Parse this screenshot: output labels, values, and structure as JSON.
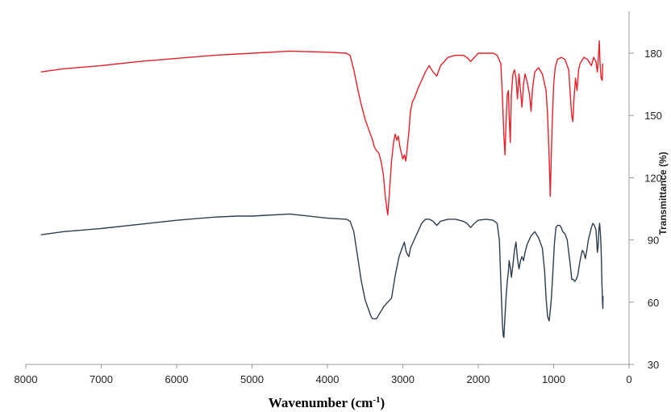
{
  "chart_data": {
    "type": "line",
    "xlabel": "Wavenumber (cm",
    "xlabel_sup": "-1",
    "xlabel_end": ")",
    "ylabel": "Transmittance (%)",
    "xlim": [
      8000,
      0
    ],
    "ylim": [
      30,
      195
    ],
    "x_ticks": [
      8000,
      7000,
      6000,
      5000,
      4000,
      3000,
      2000,
      1000,
      0
    ],
    "x_tick_labels": [
      "8000",
      "7000",
      "6000",
      "5000",
      "4000",
      "3000",
      "2000",
      "1000",
      "0"
    ],
    "y_ticks": [
      30,
      60,
      90,
      120,
      150,
      180
    ],
    "y_tick_labels": [
      "30",
      "60",
      "90",
      "120",
      "150",
      "180"
    ],
    "y_axis_position": "right",
    "grid": false,
    "legend": "none",
    "series": [
      {
        "color": "#e8202a",
        "points": [
          [
            7800,
            171
          ],
          [
            7500,
            172.5
          ],
          [
            7000,
            174
          ],
          [
            6500,
            176
          ],
          [
            6000,
            177.5
          ],
          [
            5500,
            179
          ],
          [
            5000,
            180
          ],
          [
            4500,
            181
          ],
          [
            4000,
            180.5
          ],
          [
            3750,
            180
          ],
          [
            3700,
            179
          ],
          [
            3650,
            172
          ],
          [
            3600,
            163
          ],
          [
            3550,
            155
          ],
          [
            3500,
            148
          ],
          [
            3450,
            143
          ],
          [
            3400,
            138
          ],
          [
            3380,
            135
          ],
          [
            3350,
            133
          ],
          [
            3320,
            132
          ],
          [
            3290,
            128
          ],
          [
            3260,
            122
          ],
          [
            3230,
            110
          ],
          [
            3200,
            102
          ],
          [
            3180,
            112
          ],
          [
            3150,
            128
          ],
          [
            3120,
            138
          ],
          [
            3100,
            141
          ],
          [
            3080,
            138
          ],
          [
            3060,
            140
          ],
          [
            3040,
            135
          ],
          [
            3020,
            132
          ],
          [
            3000,
            129
          ],
          [
            2980,
            131
          ],
          [
            2960,
            128
          ],
          [
            2940,
            135
          ],
          [
            2920,
            142
          ],
          [
            2900,
            152
          ],
          [
            2870,
            157
          ],
          [
            2850,
            158
          ],
          [
            2800,
            163
          ],
          [
            2750,
            167
          ],
          [
            2700,
            171
          ],
          [
            2650,
            174
          ],
          [
            2600,
            171
          ],
          [
            2550,
            169
          ],
          [
            2500,
            174
          ],
          [
            2400,
            178
          ],
          [
            2300,
            179
          ],
          [
            2200,
            179
          ],
          [
            2150,
            178
          ],
          [
            2100,
            176
          ],
          [
            2050,
            178
          ],
          [
            2000,
            180
          ],
          [
            1900,
            180
          ],
          [
            1800,
            180
          ],
          [
            1750,
            179
          ],
          [
            1700,
            175
          ],
          [
            1680,
            160
          ],
          [
            1660,
            140
          ],
          [
            1645,
            131
          ],
          [
            1630,
            148
          ],
          [
            1615,
            160
          ],
          [
            1600,
            162
          ],
          [
            1590,
            150
          ],
          [
            1575,
            137
          ],
          [
            1560,
            160
          ],
          [
            1540,
            170
          ],
          [
            1520,
            172
          ],
          [
            1500,
            168
          ],
          [
            1480,
            158
          ],
          [
            1460,
            170
          ],
          [
            1440,
            162
          ],
          [
            1420,
            154
          ],
          [
            1400,
            165
          ],
          [
            1380,
            170
          ],
          [
            1350,
            166
          ],
          [
            1320,
            160
          ],
          [
            1300,
            152
          ],
          [
            1280,
            163
          ],
          [
            1250,
            171
          ],
          [
            1200,
            173
          ],
          [
            1150,
            170
          ],
          [
            1100,
            162
          ],
          [
            1080,
            150
          ],
          [
            1060,
            130
          ],
          [
            1050,
            118
          ],
          [
            1045,
            111
          ],
          [
            1035,
            125
          ],
          [
            1020,
            145
          ],
          [
            1000,
            165
          ],
          [
            980,
            173
          ],
          [
            950,
            177
          ],
          [
            900,
            178
          ],
          [
            850,
            177
          ],
          [
            800,
            172
          ],
          [
            780,
            160
          ],
          [
            760,
            150
          ],
          [
            745,
            147
          ],
          [
            730,
            158
          ],
          [
            710,
            168
          ],
          [
            690,
            162
          ],
          [
            670,
            172
          ],
          [
            650,
            175
          ],
          [
            600,
            178
          ],
          [
            550,
            177
          ],
          [
            500,
            174
          ],
          [
            470,
            178
          ],
          [
            440,
            176
          ],
          [
            420,
            171
          ],
          [
            405,
            179
          ],
          [
            395,
            186
          ],
          [
            385,
            175
          ],
          [
            370,
            168
          ],
          [
            355,
            167
          ],
          [
            350,
            175
          ]
        ]
      },
      {
        "color": "#2e3d4f",
        "points": [
          [
            7800,
            92.5
          ],
          [
            7500,
            94
          ],
          [
            7000,
            95.5
          ],
          [
            6500,
            97.5
          ],
          [
            6000,
            99.5
          ],
          [
            5500,
            101
          ],
          [
            5200,
            101.5
          ],
          [
            5000,
            101.5
          ],
          [
            4500,
            102.5
          ],
          [
            4000,
            100.5
          ],
          [
            3750,
            100
          ],
          [
            3700,
            99
          ],
          [
            3650,
            94
          ],
          [
            3600,
            82
          ],
          [
            3550,
            70
          ],
          [
            3500,
            61
          ],
          [
            3450,
            56
          ],
          [
            3420,
            53
          ],
          [
            3400,
            52
          ],
          [
            3350,
            52
          ],
          [
            3300,
            55
          ],
          [
            3250,
            58
          ],
          [
            3200,
            60
          ],
          [
            3150,
            62
          ],
          [
            3100,
            73
          ],
          [
            3050,
            82
          ],
          [
            3000,
            87
          ],
          [
            2980,
            89
          ],
          [
            2960,
            85
          ],
          [
            2940,
            83
          ],
          [
            2920,
            82
          ],
          [
            2900,
            86
          ],
          [
            2850,
            90
          ],
          [
            2800,
            94
          ],
          [
            2750,
            98
          ],
          [
            2700,
            100
          ],
          [
            2650,
            100
          ],
          [
            2600,
            99
          ],
          [
            2550,
            97
          ],
          [
            2500,
            99
          ],
          [
            2400,
            100
          ],
          [
            2300,
            100
          ],
          [
            2200,
            99
          ],
          [
            2150,
            98
          ],
          [
            2100,
            96
          ],
          [
            2050,
            98
          ],
          [
            2000,
            99.5
          ],
          [
            1900,
            100
          ],
          [
            1800,
            99.5
          ],
          [
            1750,
            98
          ],
          [
            1720,
            90
          ],
          [
            1700,
            70
          ],
          [
            1680,
            50
          ],
          [
            1670,
            44
          ],
          [
            1660,
            43
          ],
          [
            1650,
            50
          ],
          [
            1630,
            63
          ],
          [
            1615,
            70
          ],
          [
            1600,
            75
          ],
          [
            1590,
            80
          ],
          [
            1575,
            77
          ],
          [
            1560,
            72
          ],
          [
            1540,
            78
          ],
          [
            1520,
            85
          ],
          [
            1500,
            89
          ],
          [
            1480,
            81
          ],
          [
            1460,
            76
          ],
          [
            1440,
            80
          ],
          [
            1420,
            82
          ],
          [
            1400,
            80
          ],
          [
            1380,
            84
          ],
          [
            1350,
            88
          ],
          [
            1300,
            92
          ],
          [
            1250,
            94
          ],
          [
            1200,
            91
          ],
          [
            1150,
            86
          ],
          [
            1120,
            75
          ],
          [
            1100,
            62
          ],
          [
            1080,
            53
          ],
          [
            1060,
            51
          ],
          [
            1045,
            56
          ],
          [
            1030,
            62
          ],
          [
            1010,
            75
          ],
          [
            990,
            88
          ],
          [
            970,
            96
          ],
          [
            950,
            97
          ],
          [
            920,
            97
          ],
          [
            900,
            96
          ],
          [
            880,
            94
          ],
          [
            850,
            93
          ],
          [
            820,
            90
          ],
          [
            800,
            84
          ],
          [
            780,
            78
          ],
          [
            760,
            71
          ],
          [
            740,
            71
          ],
          [
            720,
            70
          ],
          [
            700,
            71
          ],
          [
            680,
            73
          ],
          [
            650,
            80
          ],
          [
            620,
            85
          ],
          [
            600,
            84
          ],
          [
            580,
            81
          ],
          [
            560,
            85
          ],
          [
            540,
            90
          ],
          [
            520,
            93
          ],
          [
            500,
            96
          ],
          [
            480,
            98
          ],
          [
            460,
            97
          ],
          [
            440,
            95
          ],
          [
            430,
            90
          ],
          [
            420,
            84
          ],
          [
            410,
            87
          ],
          [
            400,
            95
          ],
          [
            390,
            98
          ],
          [
            380,
            93
          ],
          [
            370,
            85
          ],
          [
            360,
            70
          ],
          [
            352,
            60
          ],
          [
            348,
            57
          ],
          [
            345,
            63
          ]
        ]
      }
    ]
  }
}
